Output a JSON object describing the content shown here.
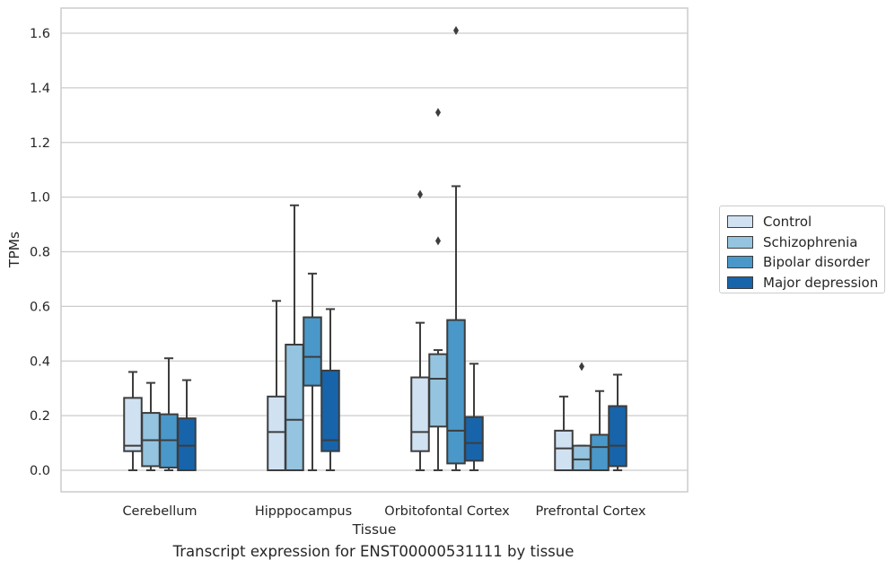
{
  "caption": "Transcript expression for ENST00000531111 by tissue",
  "chart_data": {
    "type": "box",
    "xlabel": "Tissue",
    "ylabel": "TPMs",
    "ylim": [
      -0.08,
      1.69
    ],
    "yticks": [
      0.0,
      0.2,
      0.4,
      0.6,
      0.8,
      1.0,
      1.2,
      1.4,
      1.6
    ],
    "ytick_labels": [
      "0.0",
      "0.2",
      "0.4",
      "0.6",
      "0.8",
      "1.0",
      "1.2",
      "1.4",
      "1.6"
    ],
    "grid": "horizontal",
    "legend_position": "right",
    "categories": [
      "Cerebellum",
      "Hipppocampus",
      "Orbitofontal Cortex",
      "Prefrontal Cortex"
    ],
    "series": [
      {
        "name": "Control",
        "color": "#d0e1f2",
        "boxes": [
          {
            "whislo": 0.0,
            "q1": 0.07,
            "med": 0.09,
            "q3": 0.265,
            "whishi": 0.36,
            "fliers": []
          },
          {
            "whislo": 0.0,
            "q1": 0.0,
            "med": 0.14,
            "q3": 0.27,
            "whishi": 0.62,
            "fliers": []
          },
          {
            "whislo": 0.0,
            "q1": 0.07,
            "med": 0.14,
            "q3": 0.34,
            "whishi": 0.54,
            "fliers": [
              1.01
            ]
          },
          {
            "whislo": 0.0,
            "q1": 0.0,
            "med": 0.08,
            "q3": 0.145,
            "whishi": 0.27,
            "fliers": []
          }
        ]
      },
      {
        "name": "Schizophrenia",
        "color": "#94c4df",
        "boxes": [
          {
            "whislo": 0.0,
            "q1": 0.015,
            "med": 0.11,
            "q3": 0.21,
            "whishi": 0.32,
            "fliers": []
          },
          {
            "whislo": 0.0,
            "q1": 0.0,
            "med": 0.185,
            "q3": 0.46,
            "whishi": 0.97,
            "fliers": []
          },
          {
            "whislo": 0.0,
            "q1": 0.16,
            "med": 0.335,
            "q3": 0.425,
            "whishi": 0.44,
            "fliers": [
              0.84,
              1.31
            ]
          },
          {
            "whislo": 0.0,
            "q1": 0.0,
            "med": 0.04,
            "q3": 0.09,
            "whishi": 0.09,
            "fliers": [
              0.38
            ]
          }
        ]
      },
      {
        "name": "Bipolar disorder",
        "color": "#4a98c9",
        "boxes": [
          {
            "whislo": 0.0,
            "q1": 0.01,
            "med": 0.11,
            "q3": 0.205,
            "whishi": 0.41,
            "fliers": []
          },
          {
            "whislo": 0.0,
            "q1": 0.31,
            "med": 0.415,
            "q3": 0.56,
            "whishi": 0.72,
            "fliers": []
          },
          {
            "whislo": 0.0,
            "q1": 0.025,
            "med": 0.145,
            "q3": 0.55,
            "whishi": 1.04,
            "fliers": [
              1.61
            ]
          },
          {
            "whislo": 0.0,
            "q1": 0.0,
            "med": 0.085,
            "q3": 0.13,
            "whishi": 0.29,
            "fliers": []
          }
        ]
      },
      {
        "name": "Major depression",
        "color": "#1764ab",
        "boxes": [
          {
            "whislo": 0.0,
            "q1": 0.0,
            "med": 0.09,
            "q3": 0.19,
            "whishi": 0.33,
            "fliers": []
          },
          {
            "whislo": 0.0,
            "q1": 0.07,
            "med": 0.11,
            "q3": 0.365,
            "whishi": 0.59,
            "fliers": []
          },
          {
            "whislo": 0.0,
            "q1": 0.035,
            "med": 0.1,
            "q3": 0.195,
            "whishi": 0.39,
            "fliers": []
          },
          {
            "whislo": 0.0,
            "q1": 0.015,
            "med": 0.09,
            "q3": 0.235,
            "whishi": 0.35,
            "fliers": []
          }
        ]
      }
    ]
  }
}
